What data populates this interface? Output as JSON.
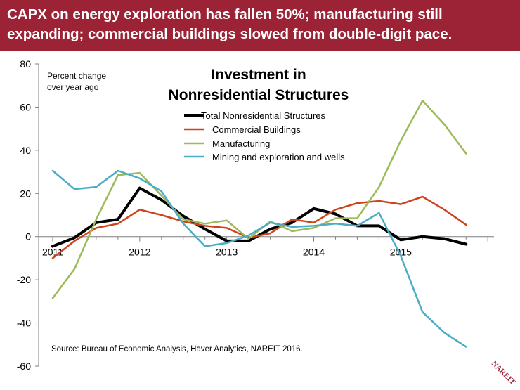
{
  "banner": {
    "text": "CAPX on energy exploration has fallen 50%; manufacturing still expanding; commercial buildings slowed from double-digit pace.",
    "color": "#9b2335"
  },
  "logo": {
    "text": "NAREIT",
    "color": "#9b2335"
  },
  "chart_data": {
    "type": "line",
    "title": "Investment in\nNonresidential Structures",
    "subtitle": "Percent change\nover year ago",
    "source": "Source: Bureau of Economic Analysis, Haver Analytics, NAREIT 2016.",
    "ylim": [
      -60,
      80
    ],
    "yticks": [
      -60,
      -40,
      -20,
      0,
      20,
      40,
      60,
      80
    ],
    "xlim": [
      2011,
      2015.95
    ],
    "xticks": [
      2011,
      2012,
      2013,
      2014,
      2015
    ],
    "grid": false,
    "legend_position": "top-center",
    "x": [
      2011.0,
      2011.25,
      2011.5,
      2011.75,
      2012.0,
      2012.25,
      2012.5,
      2012.75,
      2013.0,
      2013.25,
      2013.5,
      2013.75,
      2014.0,
      2014.25,
      2014.5,
      2014.75,
      2015.0,
      2015.25,
      2015.5,
      2015.75
    ],
    "series": [
      {
        "name": "Total Nonresidential Structures",
        "color": "#000000",
        "width": 4,
        "values": [
          -4.5,
          -0.5,
          6.5,
          8,
          22.5,
          17,
          9.5,
          3.5,
          -2,
          -2,
          3.5,
          6.5,
          13,
          10.5,
          5,
          5,
          -1.5,
          0,
          -1,
          -3.5
        ]
      },
      {
        "name": "Commercial Buildings",
        "color": "#d0431a",
        "width": 2.5,
        "values": [
          -10,
          -2,
          4,
          6,
          12.5,
          10,
          7,
          5,
          4,
          -0.5,
          1.5,
          8,
          6.5,
          12.5,
          15.5,
          16.5,
          15,
          18.5,
          12.5,
          5.5
        ]
      },
      {
        "name": "Manufacturing",
        "color": "#9bbb59",
        "width": 2.5,
        "values": [
          -28.5,
          -15,
          8,
          28.5,
          29.5,
          19,
          8,
          6,
          7.5,
          -1,
          7,
          2.5,
          4,
          8.5,
          8.5,
          23,
          44.5,
          63,
          52,
          38.5
        ]
      },
      {
        "name": "Mining and exploration and wells",
        "color": "#4bacc6",
        "width": 2.5,
        "values": [
          30.5,
          22,
          23,
          30.5,
          27,
          21,
          6,
          -4.5,
          -3,
          0.5,
          6.5,
          4.5,
          5,
          6,
          5,
          11,
          -9,
          -35,
          -44.5,
          -51
        ]
      }
    ]
  }
}
